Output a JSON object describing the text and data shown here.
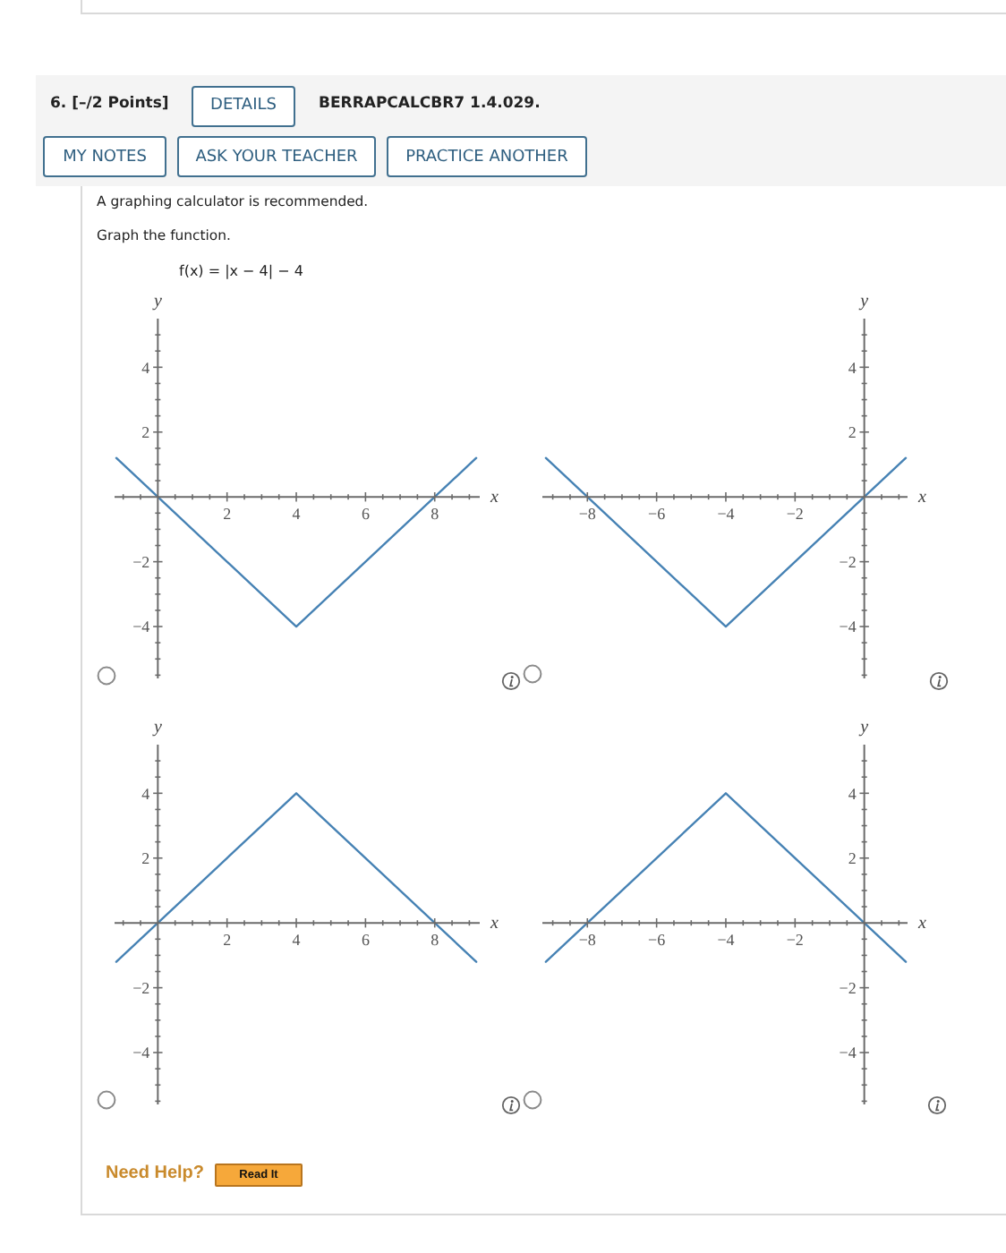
{
  "chart_data": [
    {
      "type": "other",
      "title": "6. [–/2 Points]",
      "annotations": [
        "DETAILS",
        "BERRAPCALCBR7 1.4.029.",
        "MY NOTES",
        "ASK YOUR TEACHER",
        "PRACTICE ANOTHER",
        "A graphing calculator is recommended.",
        "Graph the function.",
        "f(x) = |x − 4| − 4"
      ]
    },
    {
      "type": "line",
      "x": [
        -1.2,
        4,
        9.2
      ],
      "values": [
        1.2,
        -4,
        1.2
      ],
      "color": "#4682b4",
      "marker": "none",
      "xlabel": "x",
      "ylabel": "y",
      "xlim": [
        -1.25,
        9.3
      ],
      "ylim": [
        -5.6,
        5.5
      ],
      "xticks": [
        {
          "value": -1,
          "label": null
        },
        {
          "value": -0.5,
          "label": null
        },
        {
          "value": 0.5,
          "label": null
        },
        {
          "value": 1,
          "label": null
        },
        {
          "value": 1.5,
          "label": null
        },
        2,
        {
          "value": 2.5,
          "label": null
        },
        {
          "value": 3,
          "label": null
        },
        {
          "value": 3.5,
          "label": null
        },
        4,
        {
          "value": 4.5,
          "label": null
        },
        {
          "value": 5,
          "label": null
        },
        {
          "value": 5.5,
          "label": null
        },
        6,
        {
          "value": 6.5,
          "label": null
        },
        {
          "value": 7,
          "label": null
        },
        {
          "value": 7.5,
          "label": null
        },
        8,
        {
          "value": 8.5,
          "label": null
        },
        {
          "value": 9,
          "label": null
        }
      ],
      "yticks": [
        {
          "value": -5.5,
          "label": null
        },
        {
          "value": -5,
          "label": null
        },
        {
          "value": -4.5,
          "label": null
        },
        {
          "value": -4,
          "label": "−4"
        },
        {
          "value": -3.5,
          "label": null
        },
        {
          "value": -3,
          "label": null
        },
        {
          "value": -2.5,
          "label": null
        },
        {
          "value": -2,
          "label": "−2"
        },
        {
          "value": -1.5,
          "label": null
        },
        {
          "value": -1,
          "label": null
        },
        {
          "value": -0.5,
          "label": null
        },
        {
          "value": 0.5,
          "label": null
        },
        {
          "value": 1,
          "label": null
        },
        {
          "value": 1.5,
          "label": null
        },
        {
          "value": 2,
          "label": "2"
        },
        {
          "value": 2.5,
          "label": null
        },
        {
          "value": 3,
          "label": null
        },
        {
          "value": 3.5,
          "label": null
        },
        {
          "value": 4,
          "label": "4"
        },
        {
          "value": 4.5,
          "label": null
        },
        {
          "value": 5,
          "label": null
        }
      ]
    },
    {
      "type": "line",
      "x": [
        -9.2,
        -4,
        1.2
      ],
      "values": [
        1.2,
        -4,
        1.2
      ],
      "color": "#4682b4",
      "marker": "none",
      "xlabel": "x",
      "ylabel": "y",
      "xlim": [
        -9.3,
        1.25
      ],
      "ylim": [
        -5.6,
        5.5
      ],
      "xticks": [
        {
          "value": -9,
          "label": null
        },
        {
          "value": -8.5,
          "label": null
        },
        {
          "value": -8,
          "label": "−8"
        },
        {
          "value": -7.5,
          "label": null
        },
        {
          "value": -7,
          "label": null
        },
        {
          "value": -6.5,
          "label": null
        },
        {
          "value": -6,
          "label": "−6"
        },
        {
          "value": -5.5,
          "label": null
        },
        {
          "value": -5,
          "label": null
        },
        {
          "value": -4.5,
          "label": null
        },
        {
          "value": -4,
          "label": "−4"
        },
        {
          "value": -3.5,
          "label": null
        },
        {
          "value": -3,
          "label": null
        },
        {
          "value": -2.5,
          "label": null
        },
        {
          "value": -2,
          "label": "−2"
        },
        {
          "value": -1.5,
          "label": null
        },
        {
          "value": -1,
          "label": null
        },
        {
          "value": -0.5,
          "label": null
        },
        {
          "value": 0.5,
          "label": null
        },
        {
          "value": 1,
          "label": null
        }
      ],
      "yticks": [
        {
          "value": -5.5,
          "label": null
        },
        {
          "value": -5,
          "label": null
        },
        {
          "value": -4.5,
          "label": null
        },
        {
          "value": -4,
          "label": "−4"
        },
        {
          "value": -3.5,
          "label": null
        },
        {
          "value": -3,
          "label": null
        },
        {
          "value": -2.5,
          "label": null
        },
        {
          "value": -2,
          "label": "−2"
        },
        {
          "value": -1.5,
          "label": null
        },
        {
          "value": -1,
          "label": null
        },
        {
          "value": -0.5,
          "label": null
        },
        {
          "value": 0.5,
          "label": null
        },
        {
          "value": 1,
          "label": null
        },
        {
          "value": 1.5,
          "label": null
        },
        {
          "value": 2,
          "label": "2"
        },
        {
          "value": 2.5,
          "label": null
        },
        {
          "value": 3,
          "label": null
        },
        {
          "value": 3.5,
          "label": null
        },
        {
          "value": 4,
          "label": "4"
        },
        {
          "value": 4.5,
          "label": null
        },
        {
          "value": 5,
          "label": null
        }
      ]
    },
    {
      "type": "line",
      "x": [
        -1.2,
        4,
        9.2
      ],
      "values": [
        -1.2,
        4,
        -1.2
      ],
      "color": "#4682b4",
      "marker": "none",
      "xlabel": "x",
      "ylabel": "y",
      "xlim": [
        -1.25,
        9.3
      ],
      "ylim": [
        -5.6,
        5.5
      ],
      "xticks": [
        {
          "value": -1,
          "label": null
        },
        {
          "value": -0.5,
          "label": null
        },
        {
          "value": 0.5,
          "label": null
        },
        {
          "value": 1,
          "label": null
        },
        {
          "value": 1.5,
          "label": null
        },
        2,
        {
          "value": 2.5,
          "label": null
        },
        {
          "value": 3,
          "label": null
        },
        {
          "value": 3.5,
          "label": null
        },
        4,
        {
          "value": 4.5,
          "label": null
        },
        {
          "value": 5,
          "label": null
        },
        {
          "value": 5.5,
          "label": null
        },
        6,
        {
          "value": 6.5,
          "label": null
        },
        {
          "value": 7,
          "label": null
        },
        {
          "value": 7.5,
          "label": null
        },
        8,
        {
          "value": 8.5,
          "label": null
        },
        {
          "value": 9,
          "label": null
        }
      ],
      "yticks": [
        {
          "value": -5.5,
          "label": null
        },
        {
          "value": -5,
          "label": null
        },
        {
          "value": -4.5,
          "label": null
        },
        {
          "value": -4,
          "label": "−4"
        },
        {
          "value": -3.5,
          "label": null
        },
        {
          "value": -3,
          "label": null
        },
        {
          "value": -2.5,
          "label": null
        },
        {
          "value": -2,
          "label": "−2"
        },
        {
          "value": -1.5,
          "label": null
        },
        {
          "value": -1,
          "label": null
        },
        {
          "value": -0.5,
          "label": null
        },
        {
          "value": 0.5,
          "label": null
        },
        {
          "value": 1,
          "label": null
        },
        {
          "value": 1.5,
          "label": null
        },
        {
          "value": 2,
          "label": "2"
        },
        {
          "value": 2.5,
          "label": null
        },
        {
          "value": 3,
          "label": null
        },
        {
          "value": 3.5,
          "label": null
        },
        {
          "value": 4,
          "label": "4"
        },
        {
          "value": 4.5,
          "label": null
        },
        {
          "value": 5,
          "label": null
        }
      ]
    },
    {
      "type": "line",
      "x": [
        -9.2,
        -4,
        1.2
      ],
      "values": [
        -1.2,
        4,
        -1.2
      ],
      "color": "#4682b4",
      "marker": "none",
      "xlabel": "x",
      "ylabel": "y",
      "xlim": [
        -9.3,
        1.25
      ],
      "ylim": [
        -5.6,
        5.5
      ],
      "xticks": [
        {
          "value": -9,
          "label": null
        },
        {
          "value": -8.5,
          "label": null
        },
        {
          "value": -8,
          "label": "−8"
        },
        {
          "value": -7.5,
          "label": null
        },
        {
          "value": -7,
          "label": null
        },
        {
          "value": -6.5,
          "label": null
        },
        {
          "value": -6,
          "label": "−6"
        },
        {
          "value": -5.5,
          "label": null
        },
        {
          "value": -5,
          "label": null
        },
        {
          "value": -4.5,
          "label": null
        },
        {
          "value": -4,
          "label": "−4"
        },
        {
          "value": -3.5,
          "label": null
        },
        {
          "value": -3,
          "label": null
        },
        {
          "value": -2.5,
          "label": null
        },
        {
          "value": -2,
          "label": "−2"
        },
        {
          "value": -1.5,
          "label": null
        },
        {
          "value": -1,
          "label": null
        },
        {
          "value": -0.5,
          "label": null
        },
        {
          "value": 0.5,
          "label": null
        },
        {
          "value": 1,
          "label": null
        }
      ],
      "yticks": [
        {
          "value": -5.5,
          "label": null
        },
        {
          "value": -5,
          "label": null
        },
        {
          "value": -4.5,
          "label": null
        },
        {
          "value": -4,
          "label": "−4"
        },
        {
          "value": -3.5,
          "label": null
        },
        {
          "value": -3,
          "label": null
        },
        {
          "value": -2.5,
          "label": null
        },
        {
          "value": -2,
          "label": "−2"
        },
        {
          "value": -1.5,
          "label": null
        },
        {
          "value": -1,
          "label": null
        },
        {
          "value": -0.5,
          "label": null
        },
        {
          "value": 0.5,
          "label": null
        },
        {
          "value": 1,
          "label": null
        },
        {
          "value": 1.5,
          "label": null
        },
        {
          "value": 2,
          "label": "2"
        },
        {
          "value": 2.5,
          "label": null
        },
        {
          "value": 3,
          "label": null
        },
        {
          "value": 3.5,
          "label": null
        },
        {
          "value": 4,
          "label": "4"
        },
        {
          "value": 4.5,
          "label": null
        },
        {
          "value": 5,
          "label": null
        }
      ]
    },
    {
      "type": "other",
      "annotations": [
        "Need Help?",
        "Read It"
      ]
    }
  ]
}
